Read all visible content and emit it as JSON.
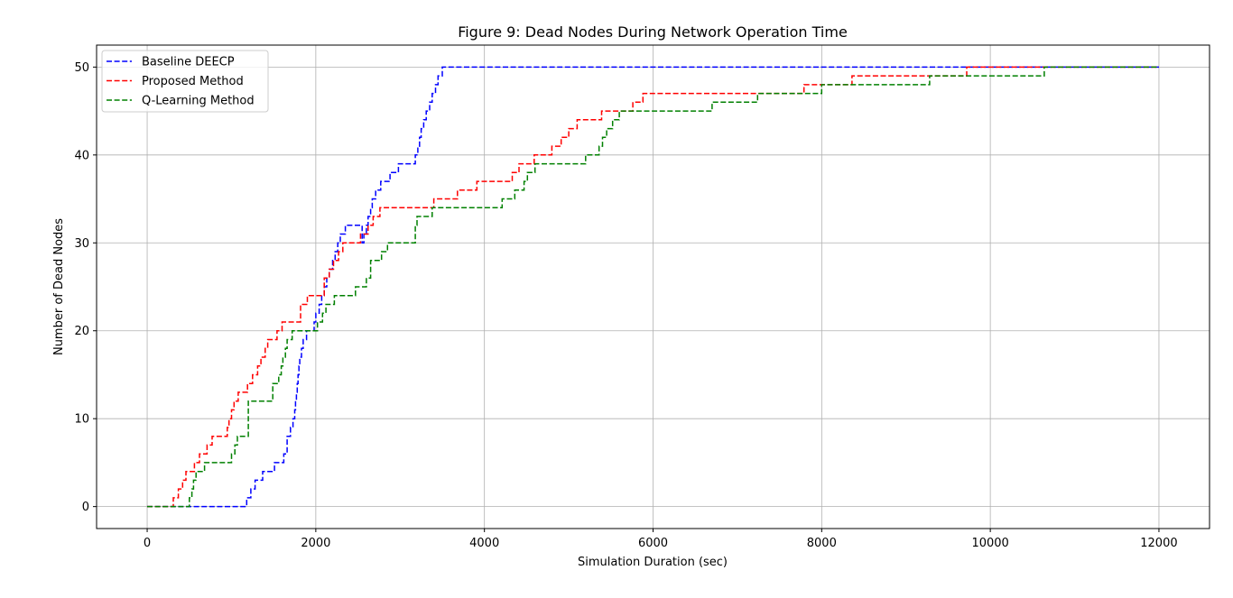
{
  "chart_data": {
    "type": "line",
    "title": "Figure 9: Dead Nodes During Network Operation Time",
    "xlabel": "Simulation Duration (sec)",
    "ylabel": "Number of Dead Nodes",
    "xlim": [
      -600,
      12600
    ],
    "ylim": [
      -2.5,
      52.5
    ],
    "xticks": [
      0,
      2000,
      4000,
      6000,
      8000,
      10000,
      12000
    ],
    "yticks": [
      0,
      10,
      20,
      30,
      40,
      50
    ],
    "grid": true,
    "legend": "top-left",
    "step": "post",
    "series": [
      {
        "name": "Baseline DEECP",
        "color": "#0000ff",
        "x": [
          0,
          1180,
          1230,
          1280,
          1370,
          1510,
          1620,
          1660,
          1700,
          1730,
          1750,
          1760,
          1770,
          1780,
          1790,
          1800,
          1810,
          1830,
          1850,
          1890,
          1980,
          2000,
          2040,
          2070,
          2100,
          2130,
          2160,
          2200,
          2230,
          2260,
          2290,
          2350,
          2550,
          2570,
          2600,
          2620,
          2650,
          2670,
          2710,
          2770,
          2880,
          2980,
          3180,
          3210,
          3230,
          3250,
          3280,
          3310,
          3350,
          3380,
          3420,
          3450,
          3500,
          3590,
          3680,
          3850,
          12000
        ],
        "y": [
          0,
          1,
          2,
          3,
          4,
          5,
          6,
          8,
          9,
          10,
          11,
          12,
          13,
          14,
          15,
          16,
          17,
          18,
          19,
          20,
          21,
          22,
          23,
          24,
          25,
          26,
          27,
          28,
          29,
          30,
          31,
          32,
          30,
          31,
          32,
          33,
          34,
          35,
          36,
          37,
          38,
          39,
          40,
          41,
          42,
          43,
          44,
          45,
          46,
          47,
          48,
          49,
          50,
          50,
          50,
          50,
          50
        ]
      },
      {
        "name": "Proposed Method",
        "color": "#ff0000",
        "x": [
          0,
          310,
          370,
          420,
          460,
          510,
          560,
          620,
          670,
          710,
          770,
          860,
          950,
          970,
          1000,
          1030,
          1080,
          1130,
          1160,
          1190,
          1250,
          1310,
          1350,
          1400,
          1430,
          1480,
          1540,
          1600,
          1650,
          1820,
          1900,
          2000,
          2100,
          2160,
          2210,
          2270,
          2320,
          2360,
          2400,
          2530,
          2620,
          2680,
          2760,
          2850,
          3000,
          3100,
          3400,
          3680,
          3910,
          4000,
          4230,
          4330,
          4410,
          4590,
          4800,
          4910,
          5000,
          5100,
          5200,
          5390,
          5450,
          5570,
          5760,
          5880,
          5950,
          6050,
          6370,
          6760,
          7230,
          7450,
          7790,
          8010,
          8360,
          8700,
          9340,
          9720,
          10660,
          12000
        ],
        "y": [
          0,
          1,
          2,
          3,
          4,
          4,
          5,
          6,
          6,
          7,
          8,
          8,
          9,
          10,
          11,
          12,
          13,
          13,
          13,
          14,
          15,
          16,
          17,
          18,
          19,
          19,
          20,
          21,
          21,
          23,
          24,
          24,
          26,
          27,
          28,
          29,
          30,
          30,
          30,
          31,
          32,
          33,
          34,
          34,
          34,
          34,
          35,
          36,
          37,
          37,
          37,
          38,
          39,
          40,
          41,
          42,
          43,
          44,
          44,
          45,
          45,
          45,
          46,
          47,
          47,
          47,
          47,
          47,
          47,
          47,
          48,
          48,
          49,
          49,
          49,
          50,
          50,
          50
        ]
      },
      {
        "name": "Q-Learning Method",
        "color": "#008000",
        "x": [
          0,
          500,
          530,
          550,
          580,
          620,
          680,
          800,
          1000,
          1040,
          1070,
          1110,
          1200,
          1260,
          1490,
          1560,
          1590,
          1610,
          1640,
          1660,
          1690,
          1720,
          1740,
          1760,
          1780,
          1900,
          2020,
          2080,
          2120,
          2160,
          2220,
          2280,
          2470,
          2600,
          2650,
          2780,
          2850,
          2920,
          3050,
          3180,
          3200,
          3380,
          3500,
          3600,
          3800,
          4000,
          4210,
          4360,
          4420,
          4470,
          4510,
          4560,
          4600,
          4650,
          5000,
          5200,
          5360,
          5400,
          5450,
          5520,
          5600,
          5650,
          5800,
          6000,
          6700,
          7240,
          8000,
          9280,
          10640,
          12000
        ],
        "y": [
          0,
          1,
          2,
          3,
          4,
          4,
          5,
          5,
          6,
          7,
          8,
          8,
          12,
          12,
          14,
          15,
          16,
          17,
          18,
          19,
          19,
          20,
          20,
          20,
          20,
          20,
          21,
          22,
          23,
          23,
          24,
          24,
          25,
          26,
          28,
          29,
          30,
          30,
          30,
          32,
          33,
          34,
          34,
          34,
          34,
          34,
          35,
          36,
          36,
          37,
          38,
          38,
          39,
          39,
          39,
          40,
          41,
          42,
          43,
          44,
          45,
          45,
          45,
          45,
          46,
          47,
          48,
          49,
          50,
          50
        ]
      }
    ]
  }
}
